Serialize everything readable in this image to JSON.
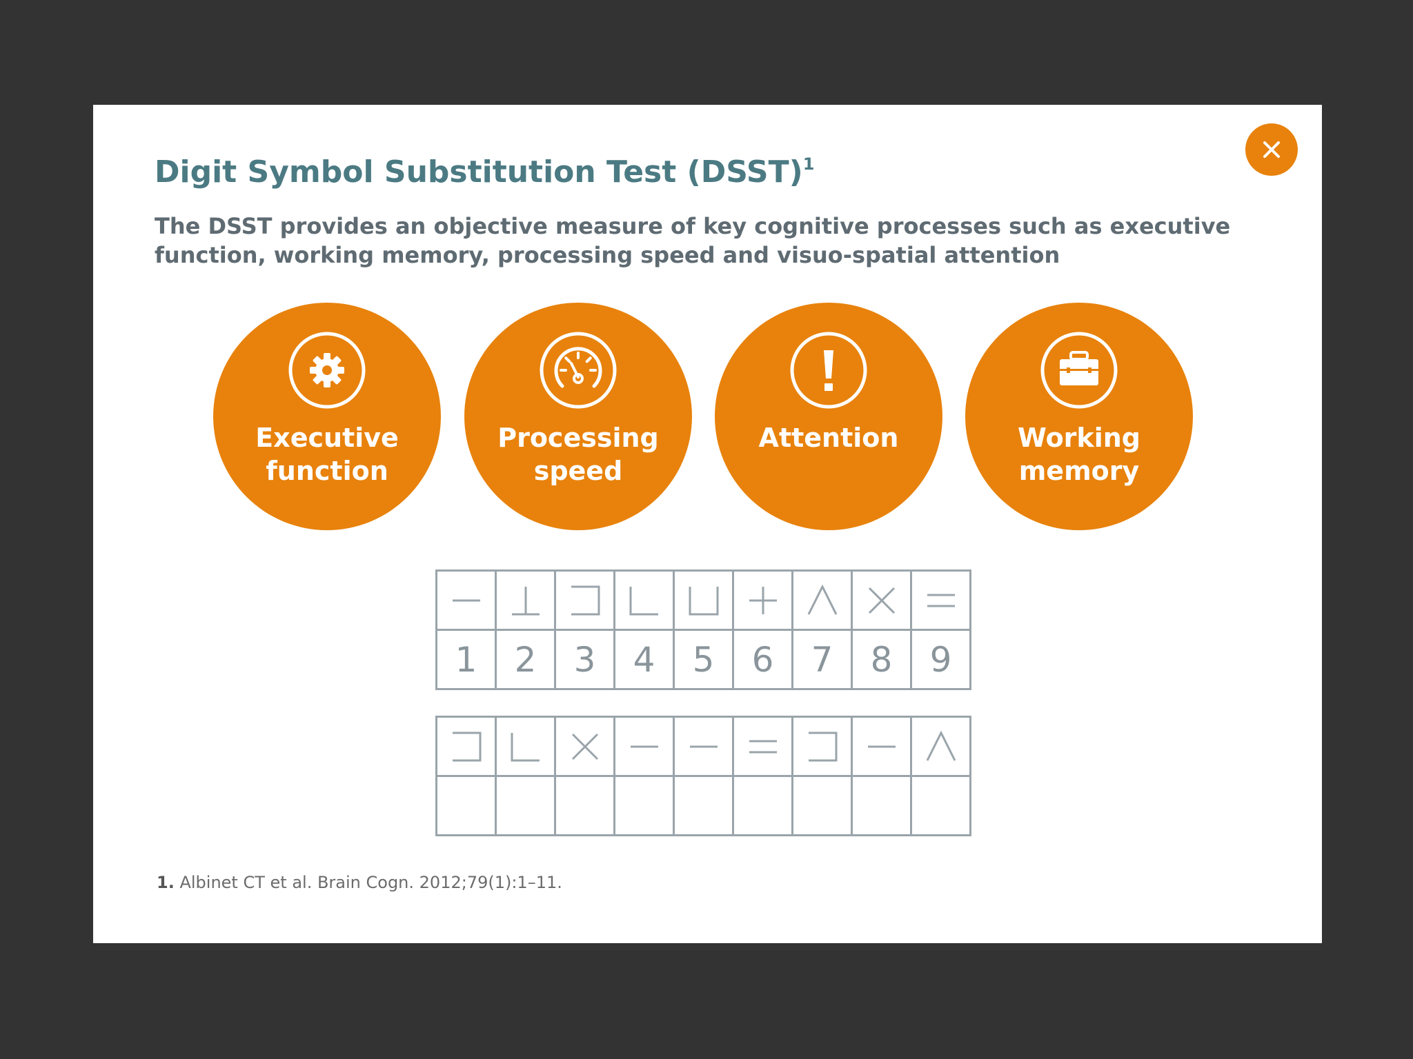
{
  "dialog": {
    "title": "Digit Symbol Substitution Test (DSST)",
    "title_ref": "1",
    "subtitle": "The DSST provides an objective measure of key cognitive processes such as executive function, working memory, processing speed and visuo-spatial attention",
    "close_icon": "close-icon"
  },
  "colors": {
    "backdrop": "#333333",
    "accent": "#e8820c",
    "title": "#4b7a83",
    "subtitle": "#5f6b72",
    "grid": "#9aa4aa"
  },
  "processes": [
    {
      "icon": "gear-icon",
      "line1": "Executive",
      "line2": "function"
    },
    {
      "icon": "speedometer-icon",
      "line1": "Processing",
      "line2": "speed"
    },
    {
      "icon": "exclamation-icon",
      "line1": "Attention",
      "line2": ""
    },
    {
      "icon": "briefcase-icon",
      "line1": "Working",
      "line2": "memory"
    }
  ],
  "key_table": {
    "symbols": [
      "dash",
      "up-tack",
      "right-bracket",
      "l-shape",
      "u-shape",
      "plus",
      "wedge",
      "x-mark",
      "equals"
    ],
    "digits": [
      "1",
      "2",
      "3",
      "4",
      "5",
      "6",
      "7",
      "8",
      "9"
    ]
  },
  "test_table": {
    "symbols": [
      "right-bracket",
      "l-shape",
      "x-mark",
      "dash",
      "dash",
      "equals",
      "right-bracket",
      "dash",
      "wedge"
    ],
    "answers": [
      "",
      "",
      "",
      "",
      "",
      "",
      "",
      "",
      ""
    ]
  },
  "footnote": {
    "number": "1.",
    "text": "Albinet CT et al. Brain Cogn. 2012;79(1):1–11."
  }
}
